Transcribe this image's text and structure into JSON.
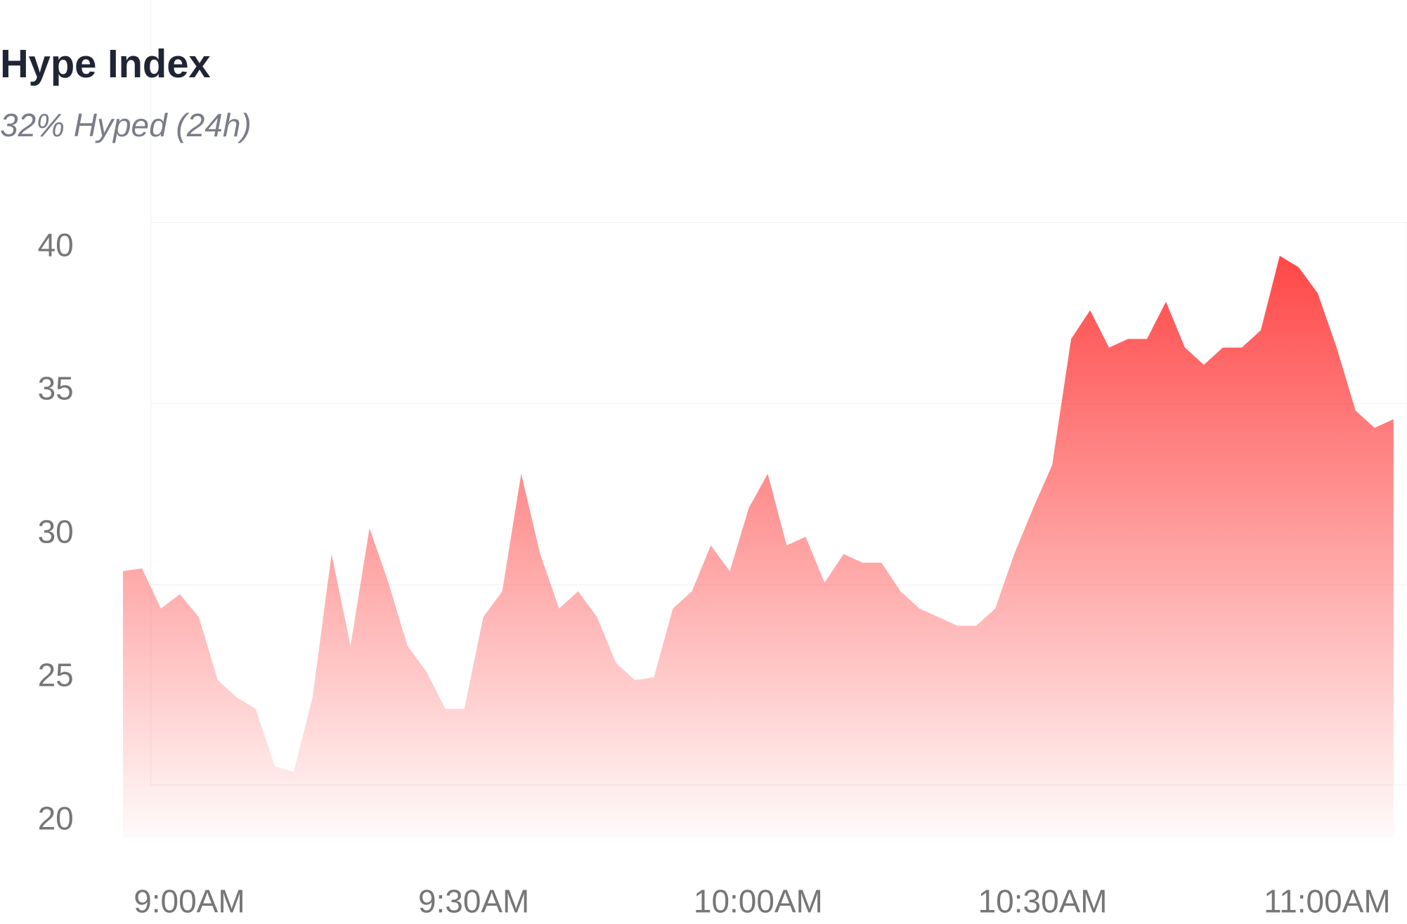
{
  "chart_data": {
    "type": "area",
    "title": "Hype Index",
    "subtitle": "32% Hyped (24h)",
    "x": [
      "8:53",
      "8:55",
      "8:57",
      "8:59",
      "9:01",
      "9:03",
      "9:05",
      "9:07",
      "9:09",
      "9:11",
      "9:13",
      "9:15",
      "9:17",
      "9:19",
      "9:21",
      "9:23",
      "9:25",
      "9:27",
      "9:29",
      "9:31",
      "9:33",
      "9:35",
      "9:37",
      "9:39",
      "9:41",
      "9:43",
      "9:45",
      "9:47",
      "9:49",
      "9:51",
      "9:53",
      "9:55",
      "9:57",
      "9:59",
      "10:01",
      "10:03",
      "10:05",
      "10:07",
      "10:09",
      "10:11",
      "10:13",
      "10:15",
      "10:17",
      "10:19",
      "10:21",
      "10:23",
      "10:25",
      "10:27",
      "10:29",
      "10:31",
      "10:33",
      "10:35",
      "10:37",
      "10:39",
      "10:41",
      "10:43",
      "10:45",
      "10:47",
      "10:49",
      "10:51",
      "10:53",
      "10:55",
      "10:57",
      "10:59",
      "11:01",
      "11:03",
      "11:05",
      "11:07"
    ],
    "series": [
      {
        "name": "Hype Index",
        "color": "#ff3b3b",
        "values": [
          28.6,
          28.7,
          27.3,
          27.8,
          27.0,
          24.8,
          24.2,
          23.8,
          21.8,
          21.6,
          24.2,
          29.2,
          26.0,
          30.1,
          28.2,
          26.0,
          25.1,
          23.8,
          23.8,
          27.0,
          27.9,
          32.0,
          29.2,
          27.3,
          27.9,
          27.0,
          25.4,
          24.8,
          24.9,
          27.3,
          27.9,
          29.5,
          28.6,
          30.8,
          32.0,
          29.5,
          29.8,
          28.2,
          29.2,
          28.9,
          28.9,
          27.9,
          27.3,
          27.0,
          26.7,
          26.7,
          27.3,
          29.2,
          30.8,
          32.3,
          36.7,
          37.7,
          36.4,
          36.7,
          36.7,
          38.0,
          36.4,
          35.8,
          36.4,
          36.4,
          37.0,
          39.6,
          39.2,
          38.3,
          36.4,
          34.2,
          33.6,
          33.9
        ]
      }
    ],
    "xlim": [
      "8:53",
      "11:07"
    ],
    "xticks": [
      {
        "value": "9:00",
        "label": "9:00AM"
      },
      {
        "value": "9:30",
        "label": "9:30AM"
      },
      {
        "value": "10:00",
        "label": "10:00AM"
      },
      {
        "value": "10:30",
        "label": "10:30AM"
      },
      {
        "value": "11:00",
        "label": "11:00AM"
      }
    ],
    "ylim": [
      19.3,
      40.7
    ],
    "yticks": [
      20,
      25,
      30,
      35,
      40
    ]
  }
}
